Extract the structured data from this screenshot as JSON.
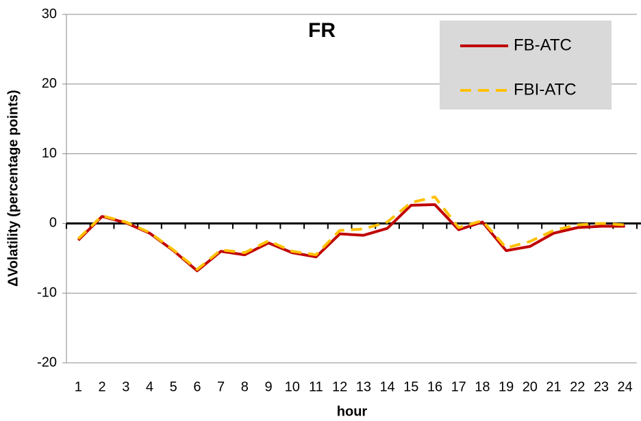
{
  "chart_data": {
    "type": "line",
    "title": "FR",
    "x_label": "hour",
    "y_label": "ΔVolatility  (percentage points)",
    "categories": [
      "1",
      "2",
      "3",
      "4",
      "5",
      "6",
      "7",
      "8",
      "9",
      "10",
      "11",
      "12",
      "13",
      "14",
      "15",
      "16",
      "17",
      "18",
      "19",
      "20",
      "21",
      "22",
      "23",
      "24"
    ],
    "series": [
      {
        "name": "FB-ATC",
        "color": "#c00000",
        "dash": false,
        "values": [
          -2.4,
          1.0,
          0.1,
          -1.4,
          -3.9,
          -6.8,
          -4.0,
          -4.5,
          -2.8,
          -4.2,
          -4.8,
          -1.5,
          -1.7,
          -0.7,
          2.6,
          2.7,
          -0.9,
          0.2,
          -3.9,
          -3.3,
          -1.4,
          -0.6,
          -0.4,
          -0.4
        ]
      },
      {
        "name": "FBI-ATC",
        "color": "#ffc000",
        "dash": true,
        "values": [
          -2.2,
          1.1,
          0.2,
          -1.3,
          -3.8,
          -6.6,
          -3.8,
          -4.2,
          -2.5,
          -4.0,
          -4.5,
          -1.0,
          -0.8,
          0.2,
          3.0,
          3.8,
          -0.6,
          0.4,
          -3.5,
          -2.6,
          -1.0,
          -0.2,
          0.0,
          -0.2
        ]
      }
    ],
    "ylim": [
      -20,
      30
    ],
    "yticks": [
      -20,
      -10,
      0,
      10,
      20,
      30
    ],
    "grid": true,
    "legend": "top-right"
  }
}
